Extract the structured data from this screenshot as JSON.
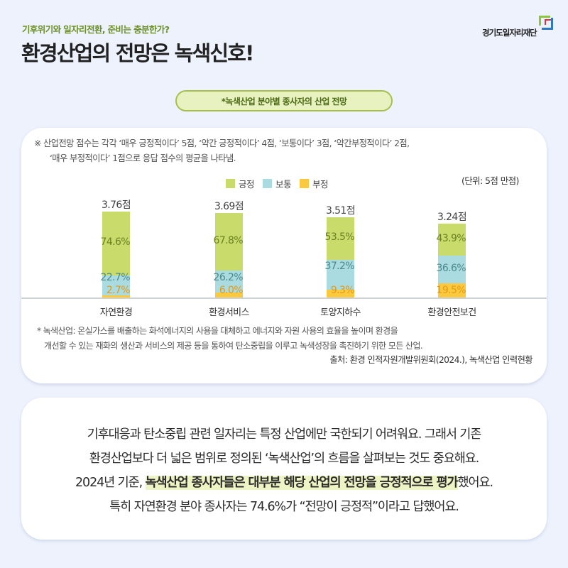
{
  "header": {
    "subtitle": "기후위기와 일자리전환, 준비는 충분한가?",
    "title": "환경산업의 전망은 녹색신호!",
    "logo_text": "경기도일자리재단",
    "logo_icon": "gyeonggi-jobs-foundation-logo"
  },
  "pill_label": "*녹색산업 분야별 종사자의 산업 전망",
  "note": {
    "line1": "※ 산업전망 점수는 각각 ‘매우 긍정적이다’ 5점, ‘약간 긍정적이다’ 4점, ‘보통이다’ 3점, ‘약간부정적이다’ 2점,",
    "line2": "‘매우 부정적이다’ 1점으로 응답 점수의 평균을 나타냄."
  },
  "legend": [
    {
      "label": "긍정",
      "color": "#c9dc6b"
    },
    {
      "label": "보통",
      "color": "#a9dbe0"
    },
    {
      "label": "부정",
      "color": "#fbc93f"
    }
  ],
  "unit": "(단위: 5점 만점)",
  "colors": {
    "positive": "#c9dc6b",
    "neutral": "#a9dbe0",
    "negative": "#fbc93f",
    "positive_text": "#6a7f22",
    "neutral_text": "#4a8a8e",
    "negative_text": "#e59a12"
  },
  "chart_data": {
    "type": "bar",
    "stacked": true,
    "title": "*녹색산업 분야별 종사자의 산업 전망",
    "unit": "(단위: 5점 만점)",
    "categories": [
      "자연환경",
      "환경서비스",
      "토양지하수",
      "환경안전보건"
    ],
    "scores": [
      3.76,
      3.69,
      3.51,
      3.24
    ],
    "score_labels": [
      "3.76점",
      "3.69점",
      "3.51점",
      "3.24점"
    ],
    "series": [
      {
        "name": "긍정",
        "values": [
          74.6,
          67.8,
          53.5,
          43.9
        ],
        "labels": [
          "74.6%",
          "67.8%",
          "53.5%",
          "43.9%"
        ]
      },
      {
        "name": "보통",
        "values": [
          22.7,
          26.2,
          37.2,
          36.6
        ],
        "labels": [
          "22.7%",
          "26.2%",
          "37.2%",
          "36.6%"
        ]
      },
      {
        "name": "부정",
        "values": [
          2.7,
          6.0,
          9.3,
          19.5
        ],
        "labels": [
          "2.7%",
          "6.0%",
          "9.3%",
          "19.5%"
        ]
      }
    ],
    "legend_position": "top",
    "grid": false,
    "xlabel": "",
    "ylabel": ""
  },
  "footnote": {
    "line1": "* 녹색산업: 온실가스를 배출하는 화석에너지의 사용을 대체하고 에너지와 자원 사용의 효율을 높이며 환경을",
    "line2": "개선할 수 있는 재화의 생산과 서비스의 제공 등을 통하여 탄소중립을 이루고 녹색성장을 촉진하기 위한 모든 산업.",
    "source": "출처: 환경 인적자원개발위원회(2024.), 녹색산업 인력현황"
  },
  "body": {
    "line1": "기후대응과 탄소중립 관련 일자리는 특정 산업에만 국한되기 어려워요. 그래서 기존",
    "line2": "환경산업보다 더 넓은 범위로 정의된 ‘녹색산업’의 흐름을 살펴보는 것도 중요해요.",
    "line3_pre": "2024년 기준, ",
    "line3_highlight": "녹색산업 종사자들은 대부분 해당 산업의 전망을 긍정적으로 평가",
    "line3_post": "했어요.",
    "line4": "특히 자연환경 분야 종사자는 74.6%가 “전망이 긍정적”이라고 답했어요."
  }
}
